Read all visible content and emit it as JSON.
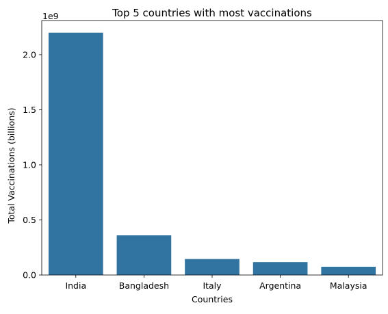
{
  "chart_data": {
    "type": "bar",
    "title": "Top 5 countries with most vaccinations",
    "xlabel": "Countries",
    "ylabel": "Total Vaccinations (billions)",
    "y_offset_label": "1e9",
    "categories": [
      "India",
      "Bangladesh",
      "Italy",
      "Argentina",
      "Malaysia"
    ],
    "values": [
      2200000000,
      360000000,
      145000000,
      117000000,
      75000000
    ],
    "ylim": [
      0,
      2310000000
    ],
    "yticks": [
      0,
      500000000,
      1000000000,
      1500000000,
      2000000000
    ],
    "ytick_labels": [
      "0.0",
      "0.5",
      "1.0",
      "1.5",
      "2.0"
    ],
    "bar_color": "#3274a1",
    "grid": false,
    "legend": "none"
  }
}
